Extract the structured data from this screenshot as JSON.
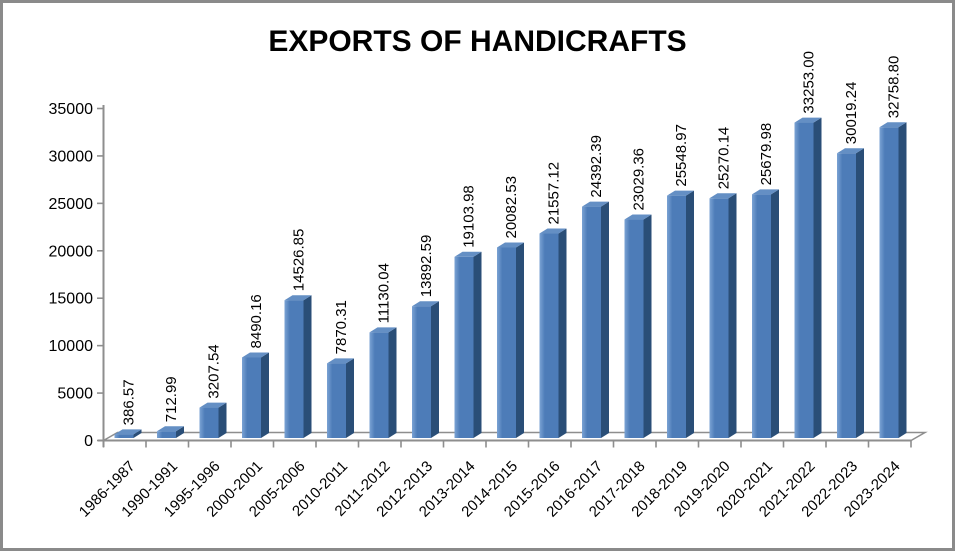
{
  "chart_data": {
    "type": "bar",
    "title": "EXPORTS OF HANDICRAFTS",
    "xlabel": "",
    "ylabel": "",
    "categories": [
      "1986-1987",
      "1990-1991",
      "1995-1996",
      "2000-2001",
      "2005-2006",
      "2010-2011",
      "2011-2012",
      "2012-2013",
      "2013-2014",
      "2014-2015",
      "2015-2016",
      "2016-2017",
      "2017-2018",
      "2018-2019",
      "2019-2020",
      "2020-2021",
      "2021-2022",
      "2022-2023",
      "2023-2024"
    ],
    "values": [
      386.57,
      712.99,
      3207.54,
      8490.16,
      14526.85,
      7870.31,
      11130.04,
      13892.59,
      19103.98,
      20082.53,
      21557.12,
      24392.39,
      23029.36,
      25548.97,
      25270.14,
      25679.98,
      33253.0,
      30019.24,
      32758.8
    ],
    "value_labels": [
      "386.57",
      "712.99",
      "3207.54",
      "8490.16",
      "14526.85",
      "7870.31",
      "11130.04",
      "13892.59",
      "19103.98",
      "20082.53",
      "21557.12",
      "24392.39",
      "23029.36",
      "25548.97",
      "25270.14",
      "25679.98",
      "33253.00",
      "30019.24",
      "32758.80"
    ],
    "ylim": [
      0,
      35000
    ],
    "ytick_step": 5000,
    "ytick_labels": [
      "0",
      "5000",
      "10000",
      "15000",
      "20000",
      "25000",
      "30000",
      "35000"
    ],
    "grid": "off",
    "legend": "none",
    "bar_style": "3d",
    "colors": {
      "bar_front": "#4d7cb8",
      "bar_front_highlight": "#7ba3d4",
      "bar_side": "#2a4e77",
      "bar_top": "#648fc4",
      "axis": "#8e8e8e",
      "text": "#000000",
      "frame_border": "#8a8a8a",
      "background": "#ffffff"
    }
  }
}
